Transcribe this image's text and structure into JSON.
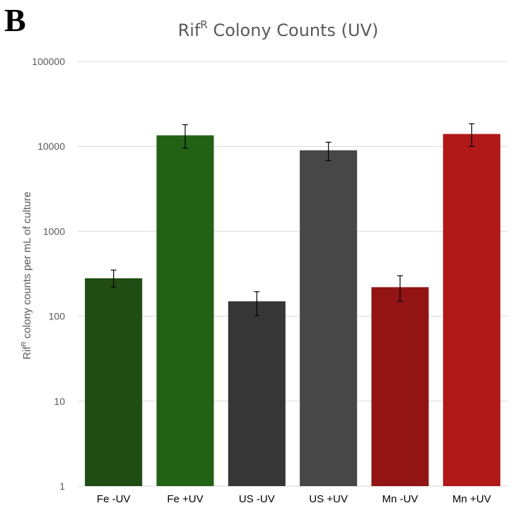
{
  "panel_label": "B",
  "chart_data": {
    "type": "bar",
    "title_main": "Rif",
    "title_sup": "R",
    "title_rest": " Colony Counts (UV)",
    "ylabel_main": "Rif",
    "ylabel_sup": "R",
    "ylabel_rest": " colony counts per mL of culture",
    "xlabel": "",
    "yscale": "log",
    "ylim": [
      1,
      100000
    ],
    "yticks": [
      1,
      10,
      100,
      1000,
      10000,
      100000
    ],
    "ytick_labels": [
      "1",
      "10",
      "100",
      "1000",
      "10000",
      "100000"
    ],
    "grid": true,
    "categories": [
      "Fe -UV",
      "Fe +UV",
      "US -UV",
      "US +UV",
      "Mn -UV",
      "Mn +UV"
    ],
    "values": [
      280,
      13500,
      150,
      9000,
      220,
      14000
    ],
    "error_low": [
      220,
      9500,
      102,
      6800,
      150,
      10000
    ],
    "error_high": [
      350,
      18000,
      195,
      11200,
      300,
      18500
    ],
    "colors": [
      "#1f4d12",
      "#236115",
      "#363636",
      "#474747",
      "#921414",
      "#b11818"
    ],
    "gridline_color": "#d9d9d9",
    "tick_label_color": "#595959",
    "category_label_color": "#000000"
  }
}
